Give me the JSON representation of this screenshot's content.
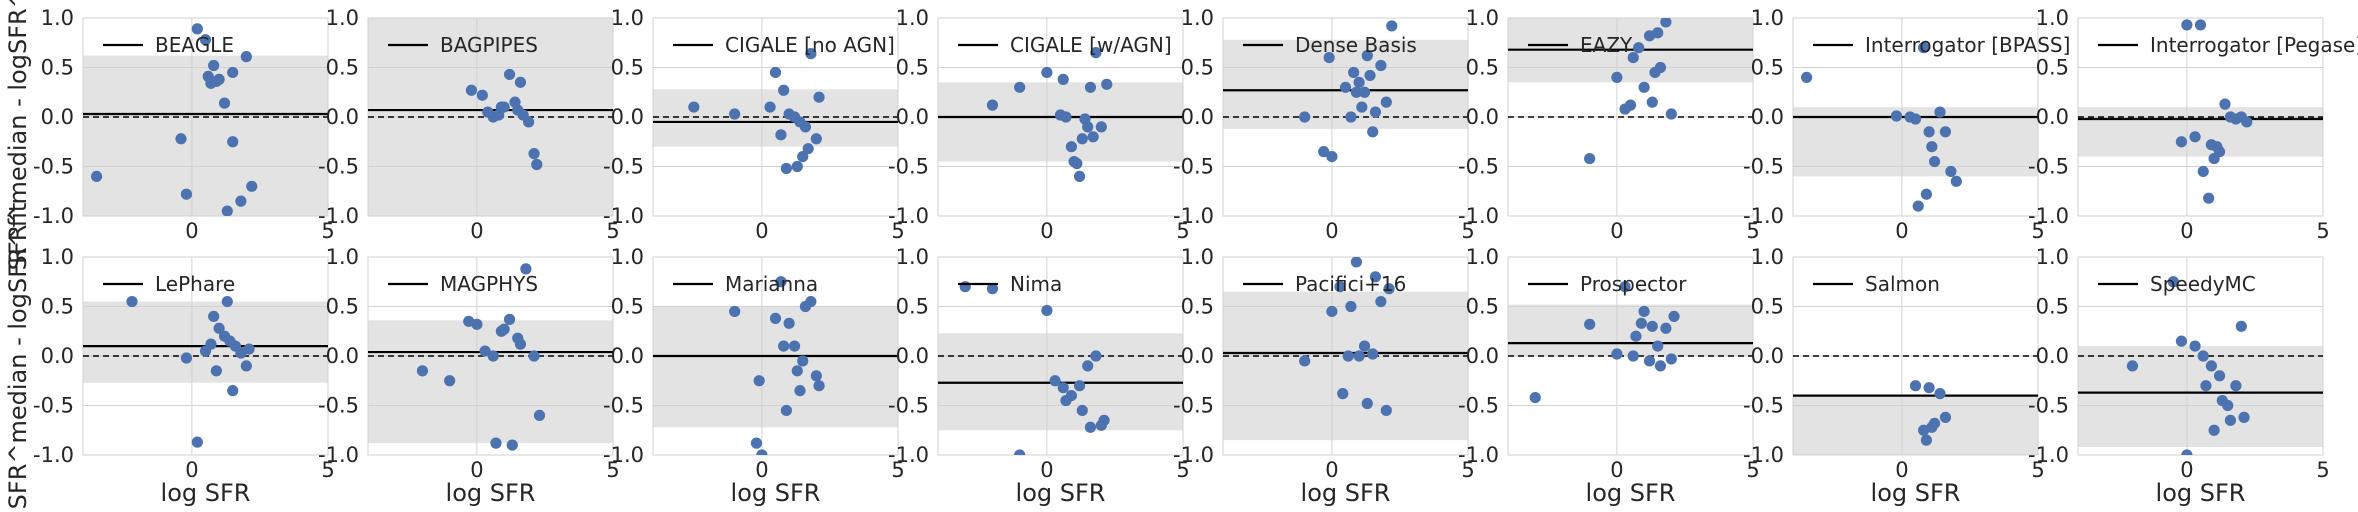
{
  "figure": {
    "row_ylabel": "SFR^median - logSFR^fit",
    "xlabel": "log SFR"
  },
  "styles": {
    "point_color": "#4c72b0",
    "band_color": "#e3e3e3",
    "grid_color": "#d2d2d2",
    "line_color": "#000000"
  },
  "chart_data": [
    {
      "type": "scatter",
      "title": "BEAGLE",
      "legend": [
        "BEAGLE"
      ],
      "xlim": [
        -4,
        5
      ],
      "ylim": [
        -1,
        1
      ],
      "xticks": [
        0,
        5
      ],
      "yticks": [
        -1.0,
        -0.5,
        0.0,
        0.5,
        1.0
      ],
      "mean": 0.03,
      "band": [
        -1.0,
        0.62
      ],
      "x": [
        0.2,
        0.5,
        0.8,
        0.6,
        0.9,
        1.0,
        0.7,
        1.5,
        2.0,
        1.2,
        -3.5,
        -0.2,
        -0.4,
        1.5,
        1.8,
        1.3,
        2.2
      ],
      "y": [
        0.89,
        0.78,
        0.52,
        0.41,
        0.36,
        0.38,
        0.34,
        0.45,
        0.61,
        0.14,
        -0.6,
        -0.78,
        -0.22,
        -0.25,
        -0.85,
        -0.95,
        -0.7
      ]
    },
    {
      "type": "scatter",
      "title": "BAGPIPES",
      "legend": [
        "BAGPIPES"
      ],
      "xlim": [
        -4,
        5
      ],
      "ylim": [
        -1,
        1
      ],
      "xticks": [
        0,
        5
      ],
      "yticks": [
        -1.0,
        -0.5,
        0.0,
        0.5,
        1.0
      ],
      "mean": 0.07,
      "band": [
        -1.0,
        1.0
      ],
      "x": [
        -0.2,
        0.2,
        0.4,
        0.6,
        0.8,
        1.0,
        1.2,
        1.4,
        1.5,
        1.6,
        1.7,
        1.9,
        2.1,
        2.2,
        0.9
      ],
      "y": [
        0.27,
        0.22,
        0.05,
        0.0,
        0.02,
        0.1,
        0.43,
        0.15,
        0.07,
        0.35,
        0.02,
        -0.05,
        -0.37,
        -0.48,
        0.1
      ]
    },
    {
      "type": "scatter",
      "title": "CIGALE [no AGN]",
      "legend": [
        "CIGALE [no AGN]"
      ],
      "xlim": [
        -4,
        5
      ],
      "ylim": [
        -1,
        1
      ],
      "xticks": [
        0,
        5
      ],
      "yticks": [
        -1.0,
        -0.5,
        0.0,
        0.5,
        1.0
      ],
      "mean": -0.05,
      "band": [
        -0.3,
        0.28
      ],
      "x": [
        -2.5,
        -1.0,
        0.3,
        0.5,
        0.8,
        1.0,
        1.2,
        1.4,
        1.6,
        1.8,
        2.0,
        1.7,
        0.7,
        0.9,
        1.3,
        2.1,
        1.5
      ],
      "y": [
        0.1,
        0.03,
        0.1,
        0.45,
        0.27,
        0.03,
        0.0,
        -0.05,
        -0.1,
        0.64,
        -0.22,
        -0.32,
        -0.18,
        -0.52,
        -0.5,
        0.2,
        -0.4
      ]
    },
    {
      "type": "scatter",
      "title": "CIGALE [w/AGN]",
      "legend": [
        "CIGALE [w/AGN]"
      ],
      "xlim": [
        -4,
        5
      ],
      "ylim": [
        -1,
        1
      ],
      "xticks": [
        0,
        5
      ],
      "yticks": [
        -1.0,
        -0.5,
        0.0,
        0.5,
        1.0
      ],
      "mean": 0.0,
      "band": [
        -0.45,
        0.35
      ],
      "x": [
        -2.0,
        -1.0,
        0.0,
        0.5,
        0.7,
        1.0,
        1.2,
        1.4,
        1.6,
        1.8,
        2.0,
        2.2,
        1.3,
        0.9,
        1.1,
        1.5,
        1.7,
        0.6
      ],
      "y": [
        0.12,
        0.3,
        0.45,
        0.02,
        0.0,
        -0.45,
        -0.6,
        -0.02,
        0.3,
        0.65,
        -0.1,
        0.33,
        -0.22,
        -0.3,
        -0.47,
        -0.1,
        -0.2,
        0.38
      ]
    },
    {
      "type": "scatter",
      "title": "Dense Basis",
      "legend": [
        "Dense Basis"
      ],
      "xlim": [
        -4,
        5
      ],
      "ylim": [
        -1,
        1
      ],
      "xticks": [
        0,
        5
      ],
      "yticks": [
        -1.0,
        -0.5,
        0.0,
        0.5,
        1.0
      ],
      "mean": 0.27,
      "band": [
        -0.12,
        0.78
      ],
      "x": [
        -1.0,
        -0.3,
        0.0,
        0.5,
        0.8,
        1.0,
        1.2,
        1.4,
        1.6,
        1.8,
        2.0,
        2.2,
        1.3,
        0.7,
        1.5,
        0.9,
        1.1,
        -0.1
      ],
      "y": [
        0.0,
        -0.35,
        -0.4,
        0.3,
        0.45,
        0.35,
        0.25,
        0.42,
        0.05,
        0.52,
        0.15,
        0.92,
        0.62,
        0.0,
        -0.15,
        0.25,
        0.1,
        0.6
      ]
    },
    {
      "type": "scatter",
      "title": "EAZY",
      "legend": [
        "EAZY"
      ],
      "xlim": [
        -4,
        5
      ],
      "ylim": [
        -1,
        1
      ],
      "xticks": [
        0,
        5
      ],
      "yticks": [
        -1.0,
        -0.5,
        0.0,
        0.5,
        1.0
      ],
      "mean": 0.68,
      "band": [
        0.35,
        1.0
      ],
      "x": [
        -1.0,
        0.0,
        0.5,
        0.8,
        1.0,
        1.2,
        1.4,
        1.6,
        1.8,
        2.0,
        0.3,
        1.3,
        1.5,
        0.6
      ],
      "y": [
        -0.42,
        0.4,
        0.12,
        0.7,
        0.3,
        0.82,
        0.45,
        0.5,
        0.96,
        0.03,
        0.08,
        0.15,
        0.85,
        0.6
      ]
    },
    {
      "type": "scatter",
      "title": "Interrogator [BPASS]",
      "legend": [
        "Interrogator [BPASS]"
      ],
      "xlim": [
        -4,
        5
      ],
      "ylim": [
        -1,
        1
      ],
      "xticks": [
        0,
        5
      ],
      "yticks": [
        -1.0,
        -0.5,
        0.0,
        0.5,
        1.0
      ],
      "mean": 0.0,
      "band": [
        -0.6,
        0.1
      ],
      "x": [
        -3.5,
        -0.2,
        0.5,
        0.8,
        1.0,
        1.2,
        1.4,
        1.6,
        1.8,
        2.0,
        0.6,
        0.9,
        1.1,
        0.3
      ],
      "y": [
        0.4,
        0.01,
        -0.02,
        0.7,
        -0.15,
        -0.45,
        0.05,
        -0.15,
        -0.55,
        -0.65,
        -0.9,
        -0.78,
        -0.3,
        0.0
      ]
    },
    {
      "type": "scatter",
      "title": "Interrogator [Pegase]",
      "legend": [
        "Interrogator [Pegase]"
      ],
      "xlim": [
        -4,
        5
      ],
      "ylim": [
        -1,
        1
      ],
      "xticks": [
        0,
        5
      ],
      "yticks": [
        -1.0,
        -0.5,
        0.0,
        0.5,
        1.0
      ],
      "mean": -0.02,
      "band": [
        -0.4,
        0.1
      ],
      "x": [
        0.0,
        0.5,
        0.8,
        1.0,
        1.2,
        1.4,
        1.6,
        1.8,
        2.0,
        0.6,
        0.9,
        1.1,
        0.3,
        -0.2,
        2.2
      ],
      "y": [
        0.93,
        0.93,
        -0.82,
        -0.42,
        -0.35,
        0.13,
        0.0,
        -0.02,
        0.0,
        -0.55,
        -0.28,
        -0.3,
        -0.2,
        -0.25,
        -0.05
      ]
    },
    {
      "type": "scatter",
      "title": "LePhare",
      "legend": [
        "LePhare"
      ],
      "xlim": [
        -4,
        5
      ],
      "ylim": [
        -1,
        1
      ],
      "xticks": [
        0,
        5
      ],
      "yticks": [
        -1.0,
        -0.5,
        0.0,
        0.5,
        1.0
      ],
      "mean": 0.1,
      "band": [
        -0.27,
        0.55
      ],
      "x": [
        -2.2,
        -0.2,
        0.2,
        0.5,
        0.8,
        1.0,
        1.2,
        1.4,
        1.6,
        1.8,
        2.0,
        2.1,
        1.3,
        0.9,
        1.5,
        0.7
      ],
      "y": [
        0.55,
        -0.02,
        -0.87,
        0.05,
        0.4,
        0.28,
        0.2,
        0.15,
        0.1,
        0.03,
        -0.1,
        0.07,
        0.55,
        -0.15,
        -0.35,
        0.12
      ]
    },
    {
      "type": "scatter",
      "title": "MAGPHYS",
      "legend": [
        "MAGPHYS"
      ],
      "xlim": [
        -4,
        5
      ],
      "ylim": [
        -1,
        1
      ],
      "xticks": [
        0,
        5
      ],
      "yticks": [
        -1.0,
        -0.5,
        0.0,
        0.5,
        1.0
      ],
      "mean": 0.04,
      "band": [
        -0.88,
        0.36
      ],
      "x": [
        -2.0,
        -1.0,
        -0.3,
        0.0,
        0.3,
        0.6,
        0.9,
        1.2,
        1.5,
        1.8,
        2.1,
        2.3,
        1.3,
        0.7,
        1.0,
        1.6
      ],
      "y": [
        -0.15,
        -0.25,
        0.35,
        0.32,
        0.05,
        0.0,
        0.25,
        0.37,
        0.18,
        0.88,
        0.0,
        -0.6,
        -0.9,
        -0.88,
        0.27,
        0.12
      ]
    },
    {
      "type": "scatter",
      "title": "Marianna",
      "legend": [
        "Marianna"
      ],
      "xlim": [
        -4,
        5
      ],
      "ylim": [
        -1,
        1
      ],
      "xticks": [
        0,
        5
      ],
      "yticks": [
        -1.0,
        -0.5,
        0.0,
        0.5,
        1.0
      ],
      "mean": 0.0,
      "band": [
        -0.72,
        0.5
      ],
      "x": [
        -1.0,
        -0.2,
        0.0,
        0.5,
        0.8,
        1.0,
        1.2,
        1.4,
        1.6,
        1.8,
        2.0,
        2.1,
        1.3,
        0.7,
        1.5,
        0.9,
        -0.1
      ],
      "y": [
        0.45,
        -0.88,
        -1.0,
        0.38,
        0.1,
        0.33,
        0.1,
        -0.35,
        0.5,
        0.55,
        -0.2,
        -0.3,
        -0.15,
        0.75,
        -0.05,
        -0.55,
        -0.25
      ]
    },
    {
      "type": "scatter",
      "title": "Nima",
      "legend": [
        "Nima"
      ],
      "xlim": [
        -4,
        5
      ],
      "ylim": [
        -1,
        1
      ],
      "xticks": [
        0,
        5
      ],
      "yticks": [
        -1.0,
        -0.5,
        0.0,
        0.5,
        1.0
      ],
      "mean": -0.27,
      "band": [
        -0.75,
        0.23
      ],
      "x": [
        -3.0,
        -2.0,
        -1.0,
        0.0,
        0.3,
        0.6,
        0.9,
        1.2,
        1.5,
        1.8,
        2.0,
        2.1,
        1.3,
        0.7,
        1.6
      ],
      "y": [
        0.7,
        0.68,
        -1.0,
        0.46,
        -0.25,
        -0.32,
        -0.4,
        -0.3,
        -0.1,
        0.0,
        -0.7,
        -0.65,
        -0.55,
        -0.45,
        -0.72
      ]
    },
    {
      "type": "scatter",
      "title": "Pacifici+16",
      "legend": [
        "Pacifici+16"
      ],
      "xlim": [
        -4,
        5
      ],
      "ylim": [
        -1,
        1
      ],
      "xticks": [
        0,
        5
      ],
      "yticks": [
        -1.0,
        -0.5,
        0.0,
        0.5,
        1.0
      ],
      "mean": 0.03,
      "band": [
        -0.85,
        0.65
      ],
      "x": [
        -1.0,
        0.0,
        0.3,
        0.6,
        0.9,
        1.2,
        1.5,
        1.8,
        2.0,
        2.1,
        1.3,
        0.7,
        1.6,
        1.0,
        0.4
      ],
      "y": [
        -0.05,
        0.45,
        0.7,
        0.0,
        0.95,
        0.1,
        0.02,
        0.55,
        -0.55,
        0.68,
        -0.48,
        0.5,
        0.8,
        0.0,
        -0.38
      ]
    },
    {
      "type": "scatter",
      "title": "Prospector",
      "legend": [
        "Prospector"
      ],
      "xlim": [
        -4,
        5
      ],
      "ylim": [
        -1,
        1
      ],
      "xticks": [
        0,
        5
      ],
      "yticks": [
        -1.0,
        -0.5,
        0.0,
        0.5,
        1.0
      ],
      "mean": 0.13,
      "band": [
        0.0,
        0.52
      ],
      "x": [
        -3.0,
        -1.0,
        0.0,
        0.3,
        0.6,
        0.9,
        1.2,
        1.5,
        1.8,
        2.0,
        2.1,
        1.3,
        0.7,
        1.6,
        1.0
      ],
      "y": [
        -0.42,
        0.32,
        0.02,
        0.7,
        0.0,
        0.33,
        -0.05,
        0.1,
        0.28,
        -0.03,
        0.4,
        0.3,
        0.2,
        -0.1,
        0.45
      ]
    },
    {
      "type": "scatter",
      "title": "Salmon",
      "legend": [
        "Salmon"
      ],
      "xlim": [
        -4,
        5
      ],
      "ylim": [
        -1,
        1
      ],
      "xticks": [
        0,
        5
      ],
      "yticks": [
        -1.0,
        -0.5,
        0.0,
        0.5,
        1.0
      ],
      "mean": -0.4,
      "band": [
        -1.0,
        -0.4
      ],
      "x": [
        0.5,
        0.8,
        1.0,
        1.2,
        1.4,
        1.6,
        0.9,
        1.1
      ],
      "y": [
        -0.3,
        -0.75,
        -0.32,
        -0.68,
        -0.38,
        -0.62,
        -0.85,
        -0.72
      ]
    },
    {
      "type": "scatter",
      "title": "SpeedyMC",
      "legend": [
        "SpeedyMC"
      ],
      "xlim": [
        -4,
        5
      ],
      "ylim": [
        -1,
        1
      ],
      "xticks": [
        0,
        5
      ],
      "yticks": [
        -1.0,
        -0.5,
        0.0,
        0.5,
        1.0
      ],
      "mean": -0.37,
      "band": [
        -0.92,
        0.1
      ],
      "x": [
        -2.0,
        -0.5,
        0.0,
        0.3,
        0.6,
        0.9,
        1.2,
        1.5,
        1.8,
        2.0,
        2.1,
        1.3,
        0.7,
        1.6,
        1.0,
        -0.2
      ],
      "y": [
        -0.1,
        0.75,
        -1.0,
        0.1,
        0.0,
        -0.1,
        -0.2,
        -0.5,
        -0.3,
        0.3,
        -0.62,
        -0.45,
        -0.3,
        -0.65,
        -0.75,
        0.15
      ]
    }
  ]
}
